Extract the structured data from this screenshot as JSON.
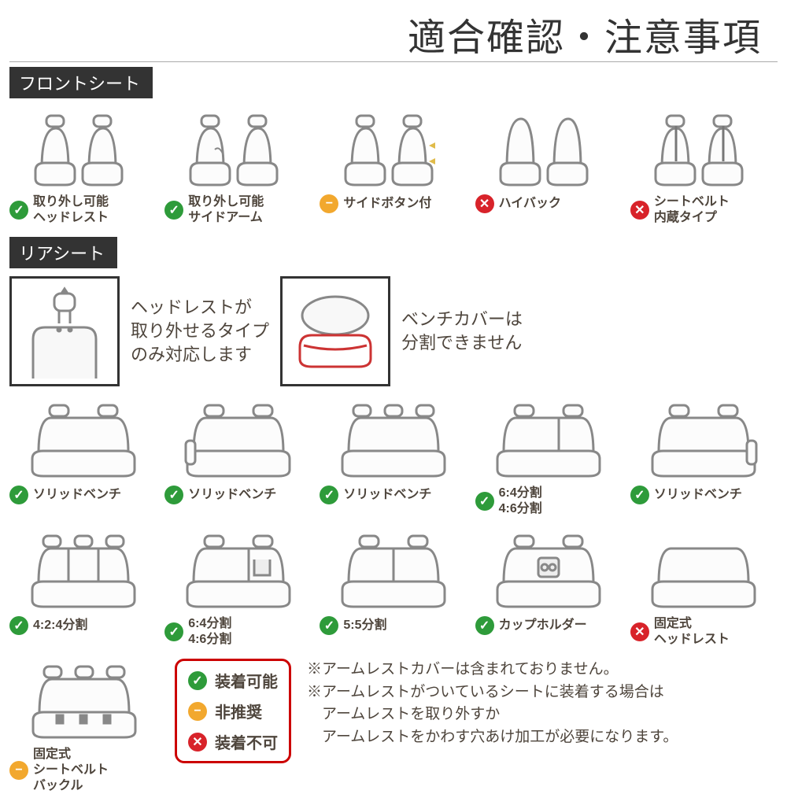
{
  "colors": {
    "ok": "#2e9b3a",
    "warn": "#f2a82e",
    "no": "#d8232a",
    "border": "#333333",
    "seat_stroke": "#888888",
    "highlight": "#cc4444"
  },
  "title": "適合確認・注意事項",
  "sections": {
    "front_label": "フロントシート",
    "rear_label": "リアシート"
  },
  "front_items": [
    {
      "status": "ok",
      "lines": [
        "取り外し可能",
        "ヘッドレスト"
      ]
    },
    {
      "status": "ok",
      "lines": [
        "取り外し可能",
        "サイドアーム"
      ]
    },
    {
      "status": "warn",
      "lines": [
        "サイドボタン付"
      ]
    },
    {
      "status": "no",
      "lines": [
        "ハイバック"
      ]
    },
    {
      "status": "no",
      "lines": [
        "シートベルト",
        "内蔵タイプ"
      ]
    }
  ],
  "rear_info": {
    "left_text": "ヘッドレストが\n取り外せるタイプ\nのみ対応します",
    "right_text": "ベンチカバーは\n分割できません"
  },
  "rear_items_row1": [
    {
      "status": "ok",
      "lines": [
        "ソリッドベンチ"
      ]
    },
    {
      "status": "ok",
      "lines": [
        "ソリッドベンチ"
      ]
    },
    {
      "status": "ok",
      "lines": [
        "ソリッドベンチ"
      ]
    },
    {
      "status": "ok",
      "lines": [
        "6:4分割",
        "4:6分割"
      ]
    },
    {
      "status": "ok",
      "lines": [
        "ソリッドベンチ"
      ]
    }
  ],
  "rear_items_row2": [
    {
      "status": "ok",
      "lines": [
        "4:2:4分割"
      ]
    },
    {
      "status": "ok",
      "lines": [
        "6:4分割",
        "4:6分割"
      ]
    },
    {
      "status": "ok",
      "lines": [
        "5:5分割"
      ]
    },
    {
      "status": "ok",
      "lines": [
        "カップホルダー"
      ]
    },
    {
      "status": "no",
      "lines": [
        "固定式",
        "ヘッドレスト"
      ]
    }
  ],
  "rear_last": {
    "status": "warn",
    "lines": [
      "固定式",
      "シートベルト",
      "バックル"
    ]
  },
  "legend": {
    "ok": "装着可能",
    "warn": "非推奨",
    "no": "装着不可"
  },
  "notes": [
    "※アームレストカバーは含まれておりません。",
    "※アームレストがついているシートに装着する場合は",
    "　アームレストを取り外すか",
    "　アームレストをかわす穴あけ加工が必要になります。"
  ]
}
